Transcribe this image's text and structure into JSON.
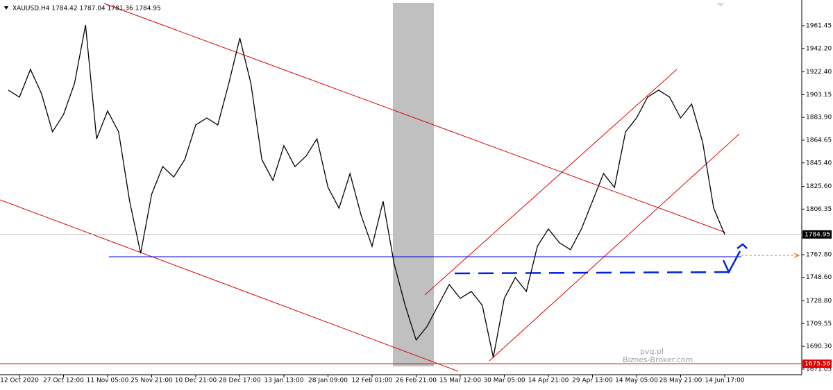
{
  "chart_data": {
    "type": "line",
    "title": "XAUUSD,H4  1784.42 1787.04 1781.36 1784.95",
    "color": "#000000",
    "categories": [
      null,
      "12 Oct 2020",
      null,
      null,
      null,
      "27 Oct 12:00",
      null,
      null,
      null,
      "11 Nov 05:00",
      null,
      null,
      null,
      "25 Nov 21:00",
      null,
      null,
      null,
      "10 Dec 21:00",
      null,
      null,
      null,
      "28 Dec 17:00",
      null,
      null,
      null,
      "13 Jan 13:00",
      null,
      null,
      null,
      "28 Jan 09:00",
      null,
      null,
      null,
      "12 Feb 01:00",
      null,
      null,
      null,
      "26 Feb 21:00",
      null,
      null,
      null,
      "15 Mar 12:00",
      null,
      null,
      null,
      "30 Mar 05:00",
      null,
      null,
      null,
      "14 Apr 21:00",
      null,
      null,
      null,
      "29 Apr 13:00",
      null,
      null,
      null,
      "14 May 05:00",
      null,
      null,
      null,
      "28 May 21:00",
      null,
      null,
      null,
      "14 Jun 17:00"
    ],
    "values": [
      1906.9,
      1901,
      1924.5,
      1904,
      1871.7,
      1886.3,
      1912.7,
      1962,
      1865.8,
      1889.3,
      1871.7,
      1813,
      1769,
      1818.9,
      1842.3,
      1833.5,
      1848.2,
      1877.5,
      1883.4,
      1877.5,
      1912.7,
      1950.9,
      1912.7,
      1848.2,
      1830.6,
      1860,
      1842.3,
      1851.1,
      1865.8,
      1824.7,
      1807.1,
      1836.4,
      1801.3,
      1774.9,
      1813,
      1760.2,
      1725,
      1695.6,
      1707.3,
      1725,
      1742.6,
      1730.9,
      1736.7,
      1725,
      1681,
      1730.9,
      1748.5,
      1736.7,
      1774.9,
      1789.6,
      1777.9,
      1772,
      1789.6,
      1813,
      1836.4,
      1824.7,
      1871.7,
      1883.4,
      1901,
      1906.9,
      1901,
      1883.4,
      1895.2,
      1862.9,
      1807.1,
      1784.95
    ],
    "ylim": [
      1666.3,
      1980.8
    ],
    "yticks": [
      1961.45,
      {
        "value": 1942.2,
        "label": "1942.20"
      },
      {
        "value": 1922.4,
        "label": "1922.40"
      },
      1903.15,
      {
        "value": 1883.9,
        "label": "1883.90"
      },
      1864.65,
      {
        "value": 1845.4,
        "label": "1845.40"
      },
      {
        "value": 1825.6,
        "label": "1825.60"
      },
      1806.35,
      {
        "value": 1767.8,
        "label": "1767.80"
      },
      {
        "value": 1748.6,
        "label": "1748.60"
      },
      {
        "value": 1728.8,
        "label": "1728.80"
      },
      1709.55,
      {
        "value": 1690.3,
        "label": "1690.30"
      },
      1671.05
    ],
    "current_price": 1784.95,
    "support_price": 1675.58,
    "watermark": [
      "pvq.pl",
      "Biznes-Broker.com"
    ]
  }
}
